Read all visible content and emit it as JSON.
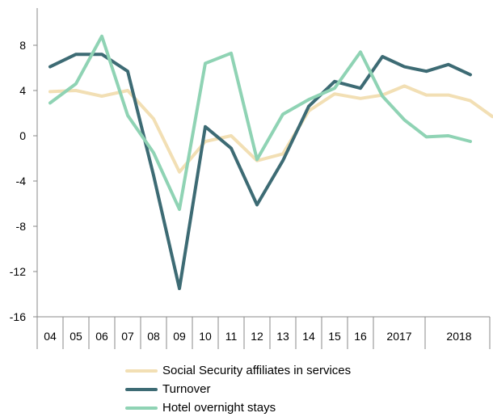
{
  "chart_data": {
    "type": "line",
    "title": "",
    "xlabel": "",
    "ylabel": "",
    "ylim": [
      -16,
      12
    ],
    "y_ticks": [
      8,
      4,
      0,
      -4,
      -8,
      -12,
      -16
    ],
    "y_tick_labels": [
      "8",
      "4",
      "0",
      "-4",
      "-8",
      "-12",
      "-16"
    ],
    "x_tick_labels": [
      "04",
      "05",
      "06",
      "07",
      "08",
      "09",
      "10",
      "11",
      "12",
      "13",
      "14",
      "15",
      "16",
      "2017",
      "2018"
    ],
    "grid": false,
    "legend_position": "bottom",
    "series": [
      {
        "name": "Social Security affiliates in services",
        "color": "#f2dfb4",
        "points": [
          {
            "x": "04",
            "y": 3.9
          },
          {
            "x": "05",
            "y": 4.0
          },
          {
            "x": "06",
            "y": 3.5
          },
          {
            "x": "07",
            "y": 4.0
          },
          {
            "x": "08",
            "y": 1.5
          },
          {
            "x": "09",
            "y": -3.2
          },
          {
            "x": "10",
            "y": -0.5
          },
          {
            "x": "11",
            "y": 0.0
          },
          {
            "x": "12",
            "y": -2.2
          },
          {
            "x": "13",
            "y": -1.6
          },
          {
            "x": "14",
            "y": 2.2
          },
          {
            "x": "15",
            "y": 3.7
          },
          {
            "x": "16",
            "y": 3.3
          },
          {
            "x": "2017 Q1",
            "y": 3.6
          },
          {
            "x": "2017 Q2",
            "y": 4.4
          },
          {
            "x": "2017 Q3",
            "y": 3.6
          },
          {
            "x": "2017 Q4",
            "y": 3.6
          },
          {
            "x": "2018 Q1",
            "y": 3.1
          },
          {
            "x": "2018 Q2",
            "y": 1.7
          }
        ]
      },
      {
        "name": "Turnover",
        "color": "#3d6b74",
        "points": [
          {
            "x": "04",
            "y": 6.1
          },
          {
            "x": "05",
            "y": 7.2
          },
          {
            "x": "06",
            "y": 7.2
          },
          {
            "x": "07",
            "y": 5.7
          },
          {
            "x": "08",
            "y": -3.5
          },
          {
            "x": "09",
            "y": -13.5
          },
          {
            "x": "10",
            "y": 0.8
          },
          {
            "x": "11",
            "y": -1.1
          },
          {
            "x": "12",
            "y": -6.1
          },
          {
            "x": "13",
            "y": -2.2
          },
          {
            "x": "14",
            "y": 2.6
          },
          {
            "x": "15",
            "y": 4.8
          },
          {
            "x": "16",
            "y": 4.2
          },
          {
            "x": "2017 Q1",
            "y": 7.0
          },
          {
            "x": "2017 Q2",
            "y": 6.1
          },
          {
            "x": "2017 Q3",
            "y": 5.7
          },
          {
            "x": "2017 Q4",
            "y": 6.3
          },
          {
            "x": "2018 Q1",
            "y": 5.4
          }
        ]
      },
      {
        "name": "Hotel overnight stays",
        "color": "#8fd3b4",
        "points": [
          {
            "x": "04",
            "y": 2.9
          },
          {
            "x": "05",
            "y": 4.6
          },
          {
            "x": "06",
            "y": 8.8
          },
          {
            "x": "07",
            "y": 1.8
          },
          {
            "x": "08",
            "y": -1.5
          },
          {
            "x": "09",
            "y": -6.5
          },
          {
            "x": "10",
            "y": 6.4
          },
          {
            "x": "11",
            "y": 7.3
          },
          {
            "x": "12",
            "y": -2.1
          },
          {
            "x": "13",
            "y": 1.9
          },
          {
            "x": "14",
            "y": 3.2
          },
          {
            "x": "15",
            "y": 4.2
          },
          {
            "x": "16",
            "y": 7.4
          },
          {
            "x": "2017 Q1",
            "y": 3.5
          },
          {
            "x": "2017 Q2",
            "y": 1.4
          },
          {
            "x": "2017 Q3",
            "y": -0.1
          },
          {
            "x": "2017 Q4",
            "y": 0.0
          },
          {
            "x": "2018 Q1",
            "y": -0.5
          }
        ]
      }
    ]
  }
}
